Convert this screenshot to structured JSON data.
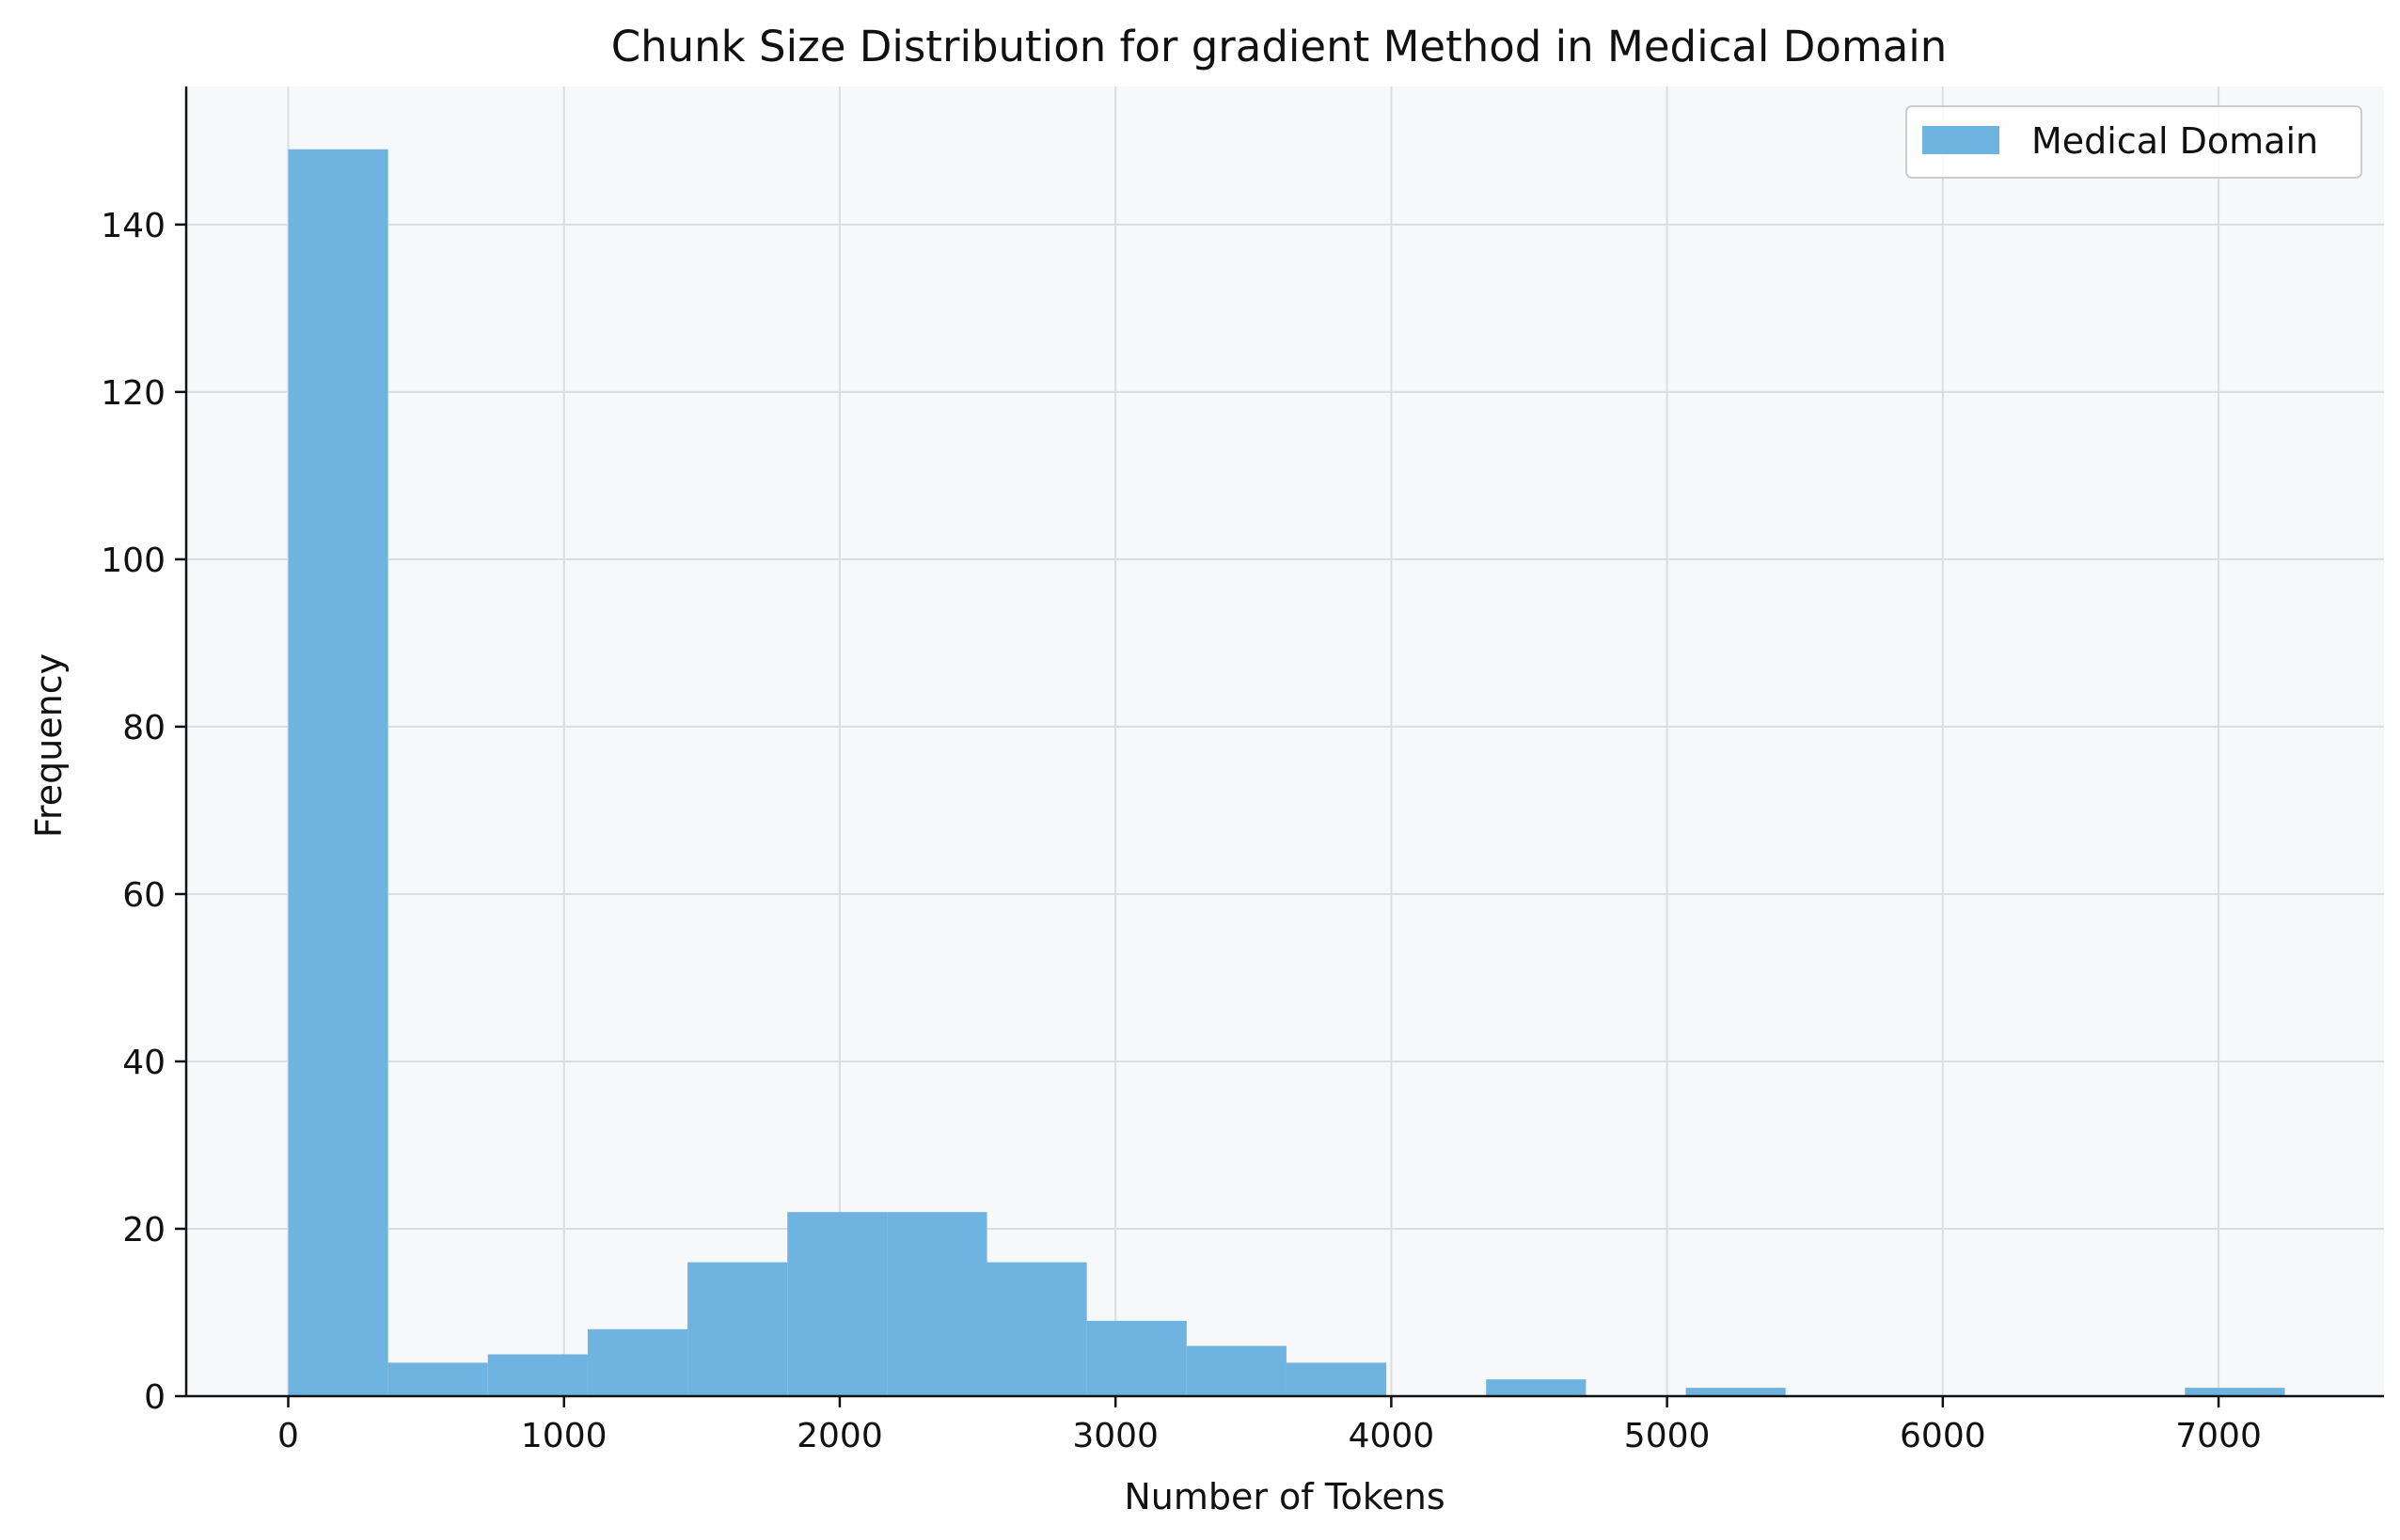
{
  "chart_data": {
    "type": "bar",
    "title": "Chunk Size Distribution for gradient Method in Medical Domain",
    "xlabel": "Number of Tokens",
    "ylabel": "Frequency",
    "xlim": [
      -370,
      7600
    ],
    "ylim": [
      0,
      156.5
    ],
    "x_ticks": [
      0,
      1000,
      2000,
      3000,
      4000,
      5000,
      6000,
      7000
    ],
    "x_tick_labels": [
      "0",
      "1000",
      "2000",
      "3000",
      "4000",
      "5000",
      "6000",
      "7000"
    ],
    "y_ticks": [
      0,
      20,
      40,
      60,
      80,
      100,
      120,
      140
    ],
    "y_tick_labels": [
      "0",
      "20",
      "40",
      "60",
      "80",
      "100",
      "120",
      "140"
    ],
    "grid": true,
    "legend_position": "top-right",
    "series": [
      {
        "name": "Medical Domain",
        "color": "#6fb3e0",
        "bin_edges": [
          0,
          362,
          724,
          1086,
          1448,
          1810,
          2172,
          2534,
          2896,
          3258,
          3620,
          3982,
          4344,
          4706,
          5068,
          5430,
          5792,
          6154,
          6516,
          6878,
          7240
        ],
        "counts": [
          149,
          4,
          5,
          8,
          16,
          22,
          22,
          16,
          9,
          6,
          4,
          0,
          2,
          0,
          1,
          0,
          0,
          0,
          0,
          1
        ]
      }
    ]
  }
}
